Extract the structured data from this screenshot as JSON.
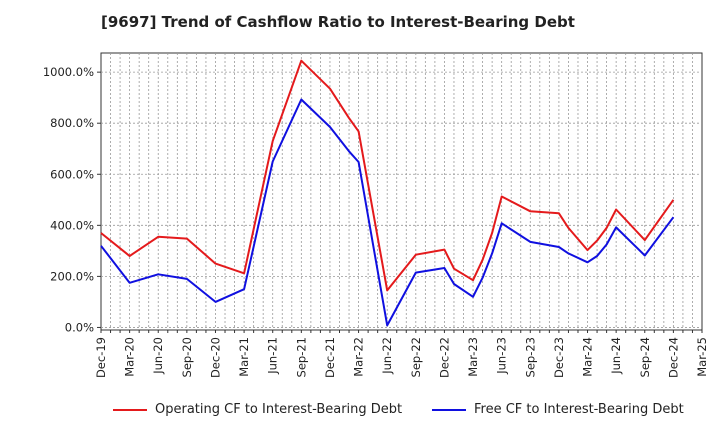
{
  "chart_data": {
    "type": "line",
    "title": "[9697]  Trend of Cashflow Ratio to Interest-Bearing Debt",
    "xlabel": "",
    "ylabel": "",
    "x_tick_labels": [
      "Dec-19",
      "Mar-20",
      "Jun-20",
      "Sep-20",
      "Dec-20",
      "Mar-21",
      "Jun-21",
      "Sep-21",
      "Dec-21",
      "Mar-22",
      "Jun-22",
      "Sep-22",
      "Dec-22",
      "Mar-23",
      "Jun-23",
      "Sep-23",
      "Dec-23",
      "Mar-24",
      "Jun-24",
      "Sep-24",
      "Dec-24",
      "Mar-25"
    ],
    "y_tick_labels": [
      "0.0%",
      "200.0%",
      "400.0%",
      "600.0%",
      "800.0%",
      "1000.0%"
    ],
    "y_ticks": [
      0,
      200,
      400,
      600,
      800,
      1000
    ],
    "ylim": [
      -10,
      1075
    ],
    "x_dates": [
      "2019-12",
      "2020-01",
      "2020-02",
      "2020-03",
      "2020-04",
      "2020-05",
      "2020-06",
      "2020-07",
      "2020-08",
      "2020-09",
      "2020-10",
      "2020-11",
      "2020-12",
      "2021-01",
      "2021-02",
      "2021-03",
      "2021-04",
      "2021-05",
      "2021-06",
      "2021-07",
      "2021-08",
      "2021-09",
      "2021-10",
      "2021-11",
      "2021-12",
      "2022-01",
      "2022-02",
      "2022-03",
      "2022-04",
      "2022-05",
      "2022-06",
      "2022-07",
      "2022-08",
      "2022-09",
      "2022-10",
      "2022-11",
      "2022-12",
      "2023-01",
      "2023-02",
      "2023-03",
      "2023-04",
      "2023-05",
      "2023-06",
      "2023-07",
      "2023-08",
      "2023-09",
      "2023-10",
      "2023-11",
      "2023-12",
      "2024-01",
      "2024-02",
      "2024-03",
      "2024-04",
      "2024-05",
      "2024-06",
      "2024-07",
      "2024-08",
      "2024-09",
      "2024-10",
      "2024-11",
      "2024-12",
      "2025-01",
      "2025-02",
      "2025-03"
    ],
    "points": [
      {
        "x": "2019-12",
        "op": 370,
        "free": 320
      },
      {
        "x": "2020-03",
        "op": 280,
        "free": 175
      },
      {
        "x": "2020-06",
        "op": 355,
        "free": 208
      },
      {
        "x": "2020-09",
        "op": 348,
        "free": 190
      },
      {
        "x": "2020-12",
        "op": 250,
        "free": 100
      },
      {
        "x": "2021-03",
        "op": 212,
        "free": 150
      },
      {
        "x": "2021-06",
        "op": 730,
        "free": 650
      },
      {
        "x": "2021-09",
        "op": 1045,
        "free": 893
      },
      {
        "x": "2021-12",
        "op": 935,
        "free": 785
      },
      {
        "x": "2022-02",
        "op": 820,
        "free": 690
      },
      {
        "x": "2022-03",
        "op": 768,
        "free": 648
      },
      {
        "x": "2022-06",
        "op": 145,
        "free": 8
      },
      {
        "x": "2022-09",
        "op": 285,
        "free": 215
      },
      {
        "x": "2022-12",
        "op": 305,
        "free": 233
      },
      {
        "x": "2023-01",
        "op": 230,
        "free": 170
      },
      {
        "x": "2023-03",
        "op": 185,
        "free": 120
      },
      {
        "x": "2023-04",
        "op": 265,
        "free": 195
      },
      {
        "x": "2023-05",
        "op": 370,
        "free": 290
      },
      {
        "x": "2023-06",
        "op": 513,
        "free": 408
      },
      {
        "x": "2023-09",
        "op": 455,
        "free": 335
      },
      {
        "x": "2023-12",
        "op": 447,
        "free": 315
      },
      {
        "x": "2024-01",
        "op": 390,
        "free": 290
      },
      {
        "x": "2024-03",
        "op": 303,
        "free": 255
      },
      {
        "x": "2024-04",
        "op": 340,
        "free": 280
      },
      {
        "x": "2024-05",
        "op": 390,
        "free": 325
      },
      {
        "x": "2024-06",
        "op": 462,
        "free": 392
      },
      {
        "x": "2024-09",
        "op": 342,
        "free": 282
      },
      {
        "x": "2024-12",
        "op": 500,
        "free": 432
      }
    ],
    "series": [
      {
        "key": "op",
        "name": "Operating CF to Interest-Bearing Debt",
        "color": "#e41a1c"
      },
      {
        "key": "free",
        "name": "Free CF to Interest-Bearing Debt",
        "color": "#1010e0"
      }
    ],
    "grid": true,
    "legend_position": "bottom"
  }
}
